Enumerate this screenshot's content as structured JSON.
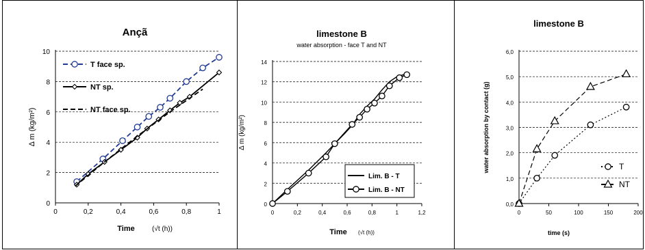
{
  "chart_data": [
    {
      "type": "line",
      "title": "Ançã",
      "xlabel": "Time",
      "xlabel_unit": "(√t (h))",
      "ylabel": "Δ m  (kg/m²)",
      "xlim": [
        0,
        1
      ],
      "ylim": [
        0,
        10
      ],
      "x_ticks": [
        "0",
        "0,2",
        "0,4",
        "0,6",
        "0,8",
        "1"
      ],
      "y_ticks": [
        "0",
        "2",
        "4",
        "6",
        "8",
        "10"
      ],
      "grid": "horizontal",
      "legend_position": "top-left",
      "series": [
        {
          "name": "T face sp.",
          "color": "#1f3a93",
          "style": "dashed",
          "marker": "circle",
          "x": [
            0.13,
            0.29,
            0.41,
            0.5,
            0.57,
            0.64,
            0.7,
            0.8,
            0.9,
            1.0
          ],
          "y": [
            1.4,
            2.9,
            4.1,
            5.0,
            5.7,
            6.3,
            6.9,
            8.0,
            8.9,
            9.6
          ]
        },
        {
          "name": "NT sp.",
          "color": "#000000",
          "style": "solid",
          "marker": "diamond",
          "x": [
            0.13,
            0.2,
            0.3,
            0.4,
            0.5,
            0.56,
            0.63,
            0.7,
            0.76,
            0.82,
            1.0
          ],
          "y": [
            1.2,
            1.9,
            2.7,
            3.5,
            4.3,
            4.9,
            5.5,
            6.1,
            6.6,
            7.0,
            8.6
          ]
        },
        {
          "name": "NT face sp.",
          "color": "#000000",
          "style": "dashed",
          "marker": "none",
          "x": [
            0.12,
            0.3,
            0.5,
            0.7,
            0.9
          ],
          "y": [
            1.1,
            2.7,
            4.4,
            6.0,
            7.5
          ]
        }
      ]
    },
    {
      "type": "line",
      "title": "limestone B",
      "subtitle": "water absorption - face T and NT",
      "xlabel": "Time",
      "xlabel_unit": "(√t (h))",
      "ylabel": "Δ m  (kg/m²)",
      "xlim": [
        0,
        1.2
      ],
      "ylim": [
        0,
        14
      ],
      "x_ticks": [
        "0",
        "0,2",
        "0,4",
        "0,6",
        "0,8",
        "1",
        "1,2"
      ],
      "y_ticks": [
        "0",
        "2",
        "4",
        "6",
        "8",
        "10",
        "12",
        "14"
      ],
      "grid": "horizontal",
      "legend_position": "bottom-right",
      "series": [
        {
          "name": "Lim. B - T",
          "color": "#000000",
          "style": "solid",
          "marker": "none",
          "x": [
            0,
            0.12,
            0.29,
            0.43,
            0.5,
            0.58,
            0.64,
            0.7,
            0.76,
            0.82,
            0.88,
            0.94,
            1.0,
            1.08
          ],
          "y": [
            0,
            1.4,
            3.3,
            5.0,
            5.9,
            6.9,
            7.7,
            8.8,
            9.6,
            10.3,
            11.2,
            12.0,
            12.5,
            12.8
          ]
        },
        {
          "name": "Lim. B - NT",
          "color": "#000000",
          "style": "solid",
          "marker": "circle",
          "x": [
            0,
            0.12,
            0.29,
            0.43,
            0.5,
            0.64,
            0.7,
            0.76,
            0.82,
            0.88,
            0.94,
            1.02,
            1.08
          ],
          "y": [
            0,
            1.2,
            3.0,
            4.6,
            5.9,
            7.8,
            8.5,
            9.3,
            9.9,
            10.6,
            11.6,
            12.4,
            12.7
          ]
        }
      ]
    },
    {
      "type": "line",
      "title": "limestone B",
      "xlabel": "time (s)",
      "ylabel": "water absorption by contact (g)",
      "xlim": [
        0,
        200
      ],
      "ylim": [
        0,
        6
      ],
      "x_ticks": [
        "0",
        "50",
        "100",
        "150",
        "200"
      ],
      "y_ticks": [
        "0,0",
        "1,0",
        "2,0",
        "3,0",
        "4,0",
        "5,0",
        "6,0"
      ],
      "grid": "horizontal",
      "legend_position": "right",
      "series": [
        {
          "name": "T",
          "color": "#000000",
          "style": "dotted",
          "marker": "circle",
          "x": [
            0,
            30,
            60,
            120,
            180
          ],
          "y": [
            0,
            1.0,
            1.9,
            3.1,
            3.8
          ]
        },
        {
          "name": "NT",
          "color": "#000000",
          "style": "dashed",
          "marker": "triangle",
          "x": [
            0,
            30,
            60,
            120,
            180
          ],
          "y": [
            0,
            2.15,
            3.25,
            4.6,
            5.1
          ]
        }
      ]
    }
  ]
}
